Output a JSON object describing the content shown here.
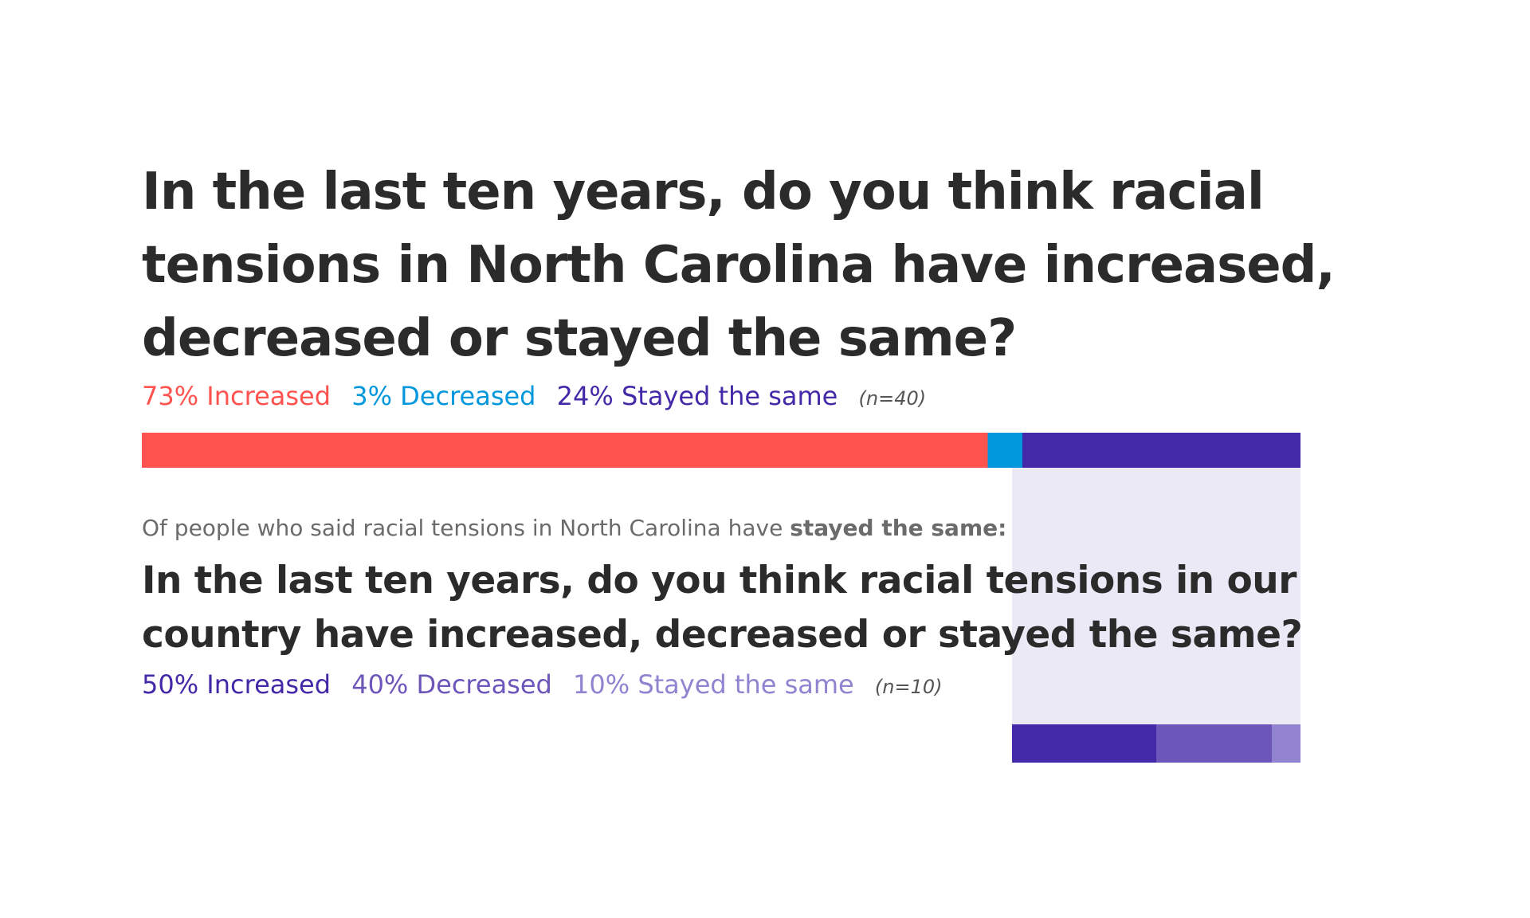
{
  "chart_data": [
    {
      "type": "bar",
      "orientation": "horizontal-stacked",
      "title": "In the last ten years, do you think racial tensions in North Carolina have increased, decreased or stayed the same?",
      "n_label": "(n=40)",
      "series": [
        {
          "name": "Increased",
          "label": "73% Increased",
          "value": 73,
          "color": "#ff5350"
        },
        {
          "name": "Decreased",
          "label": "3% Decreased",
          "value": 3,
          "color": "#0097dd"
        },
        {
          "name": "Stayed the same",
          "label": "24% Stayed the same",
          "value": 24,
          "color": "#4329a8"
        }
      ]
    },
    {
      "type": "bar",
      "orientation": "horizontal-stacked",
      "filter_prefix": "Of people who said racial tensions in North Carolina have",
      "filter_emphasis": "stayed the same:",
      "title": "In the last ten years, do you think racial tensions in our country have increased, decreased or stayed the same?",
      "n_label": "(n=10)",
      "series": [
        {
          "name": "Increased",
          "label": "50% Increased",
          "value": 50,
          "color": "#4329a8"
        },
        {
          "name": "Decreased",
          "label": "40% Decreased",
          "value": 40,
          "color": "#6c56ba"
        },
        {
          "name": "Stayed the same",
          "label": "10% Stayed the same",
          "value": 10,
          "color": "#9183cf"
        }
      ]
    }
  ],
  "colors": {
    "title_text": "#2b2b2b",
    "note_text": "#6b6b6b",
    "sub_panel": "#ebe9f6"
  }
}
